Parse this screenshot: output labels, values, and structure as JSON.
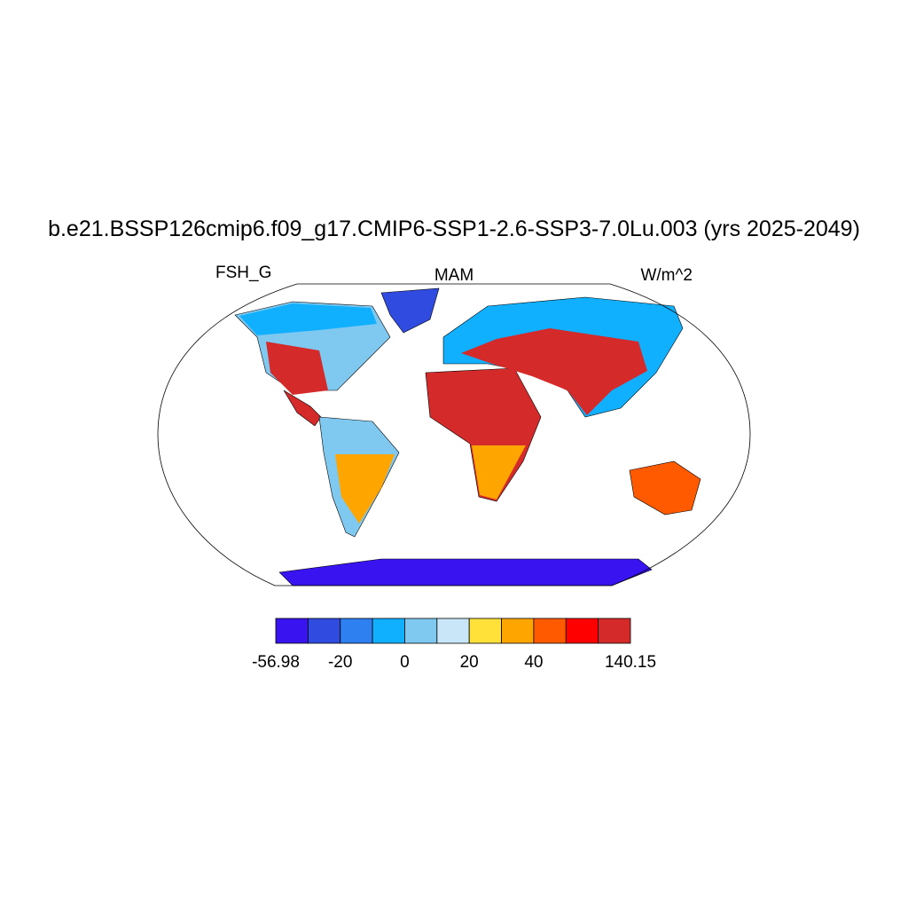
{
  "title": "b.e21.BSSP126cmip6.f09_g17.CMIP6-SSP1-2.6-SSP3-7.0Lu.003 (yrs 2025-2049)",
  "left_string": "FSH_G",
  "center_string": "MAM",
  "right_string": "W/m^2",
  "colorbar": {
    "colors": [
      "#3a14f0",
      "#2f4be0",
      "#2e7ff0",
      "#10b0ff",
      "#7fc8f0",
      "#c8e6f8",
      "#ffe13a",
      "#ffa500",
      "#ff5a00",
      "#ff0000",
      "#d42a2a"
    ],
    "labels": [
      "-56.98",
      "-20",
      "0",
      "20",
      "40",
      "140.15"
    ]
  }
}
